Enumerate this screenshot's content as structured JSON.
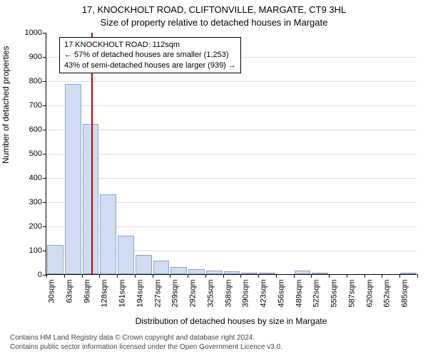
{
  "title_main": "17, KNOCKHOLT ROAD, CLIFTONVILLE, MARGATE, CT9 3HL",
  "title_sub": "Size of property relative to detached houses in Margate",
  "ylabel": "Number of detached properties",
  "xlabel": "Distribution of detached houses by size in Margate",
  "footer_line1": "Contains HM Land Registry data © Crown copyright and database right 2024.",
  "footer_line2": "Contains public sector information licensed under the Open Government Licence v3.0.",
  "chart": {
    "type": "histogram",
    "ylim": [
      0,
      1000
    ],
    "ytick_step": 100,
    "bar_fill": "#cfdcf2",
    "bar_stroke": "#8aa4d6",
    "grid_color": "#dddddd",
    "vline_color": "#c00000",
    "vline_x_value": 112,
    "x_min": 30,
    "x_max": 702,
    "x_tick_labels": [
      "30sqm",
      "63sqm",
      "96sqm",
      "128sqm",
      "161sqm",
      "194sqm",
      "227sqm",
      "259sqm",
      "292sqm",
      "325sqm",
      "358sqm",
      "390sqm",
      "423sqm",
      "456sqm",
      "489sqm",
      "522sqm",
      "555sqm",
      "587sqm",
      "620sqm",
      "652sqm",
      "685sqm"
    ],
    "bars": [
      120,
      786,
      620,
      330,
      160,
      80,
      55,
      30,
      22,
      15,
      12,
      7,
      5,
      0,
      15,
      3,
      0,
      0,
      0,
      0,
      2
    ]
  },
  "annotation": {
    "line1": "17 KNOCKHOLT ROAD: 112sqm",
    "line2": "← 57% of detached houses are smaller (1,253)",
    "line3": "43% of semi-detached houses are larger (939) →"
  }
}
